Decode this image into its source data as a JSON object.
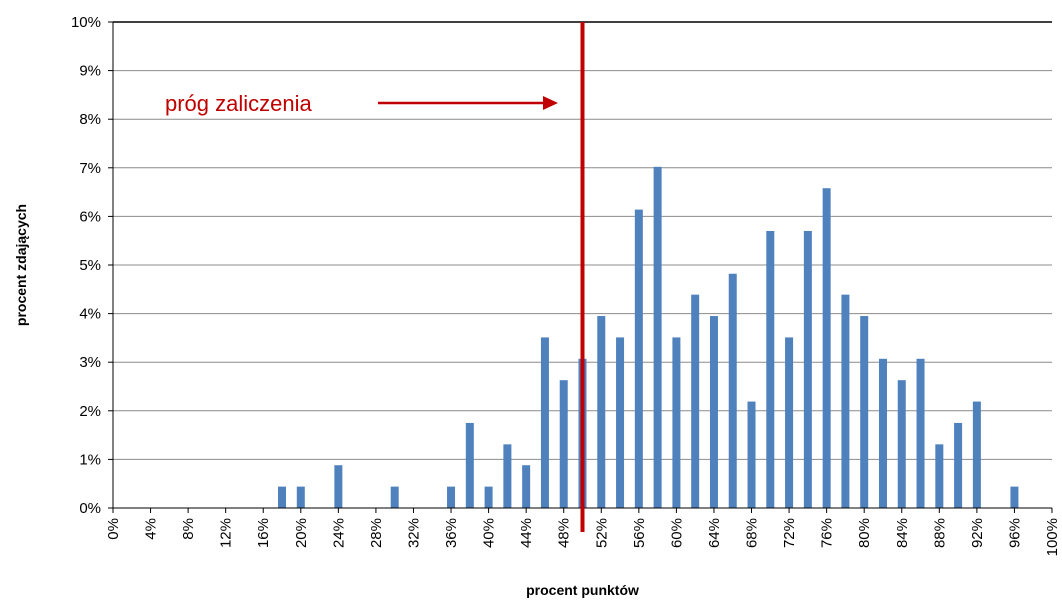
{
  "chart_data": {
    "type": "bar",
    "title": "",
    "xlabel": "procent punktów",
    "ylabel": "procent zdających",
    "x_tick_labels": [
      "0%",
      "4%",
      "8%",
      "12%",
      "16%",
      "20%",
      "24%",
      "28%",
      "32%",
      "36%",
      "40%",
      "44%",
      "48%",
      "52%",
      "56%",
      "60%",
      "64%",
      "68%",
      "72%",
      "76%",
      "80%",
      "84%",
      "88%",
      "92%",
      "96%",
      "100%"
    ],
    "y_tick_labels": [
      "0%",
      "1%",
      "2%",
      "3%",
      "4%",
      "5%",
      "6%",
      "7%",
      "8%",
      "9%",
      "10%"
    ],
    "x": [
      0,
      2,
      4,
      6,
      8,
      10,
      12,
      14,
      16,
      18,
      20,
      22,
      24,
      26,
      28,
      30,
      32,
      34,
      36,
      38,
      40,
      42,
      44,
      46,
      48,
      50,
      52,
      54,
      56,
      58,
      60,
      62,
      64,
      66,
      68,
      70,
      72,
      74,
      76,
      78,
      80,
      82,
      84,
      86,
      88,
      90,
      92,
      94,
      96,
      98,
      100
    ],
    "values": [
      0,
      0,
      0,
      0,
      0,
      0,
      0,
      0,
      0,
      0.44,
      0.44,
      0,
      0.88,
      0,
      0,
      0.44,
      0,
      0,
      0.44,
      1.75,
      0.44,
      1.31,
      0.88,
      3.51,
      2.63,
      3.07,
      3.95,
      3.51,
      6.14,
      7.02,
      3.51,
      4.39,
      3.95,
      4.82,
      2.19,
      5.7,
      3.51,
      5.7,
      6.58,
      4.39,
      3.95,
      3.07,
      2.63,
      3.07,
      1.31,
      1.75,
      2.19,
      0,
      0.44,
      0,
      0
    ],
    "ylim": [
      0,
      10
    ],
    "grid": true,
    "bar_color": "#4f81bd",
    "threshold": {
      "x": 50,
      "label": "próg zaliczenia",
      "color": "#c00000"
    }
  }
}
